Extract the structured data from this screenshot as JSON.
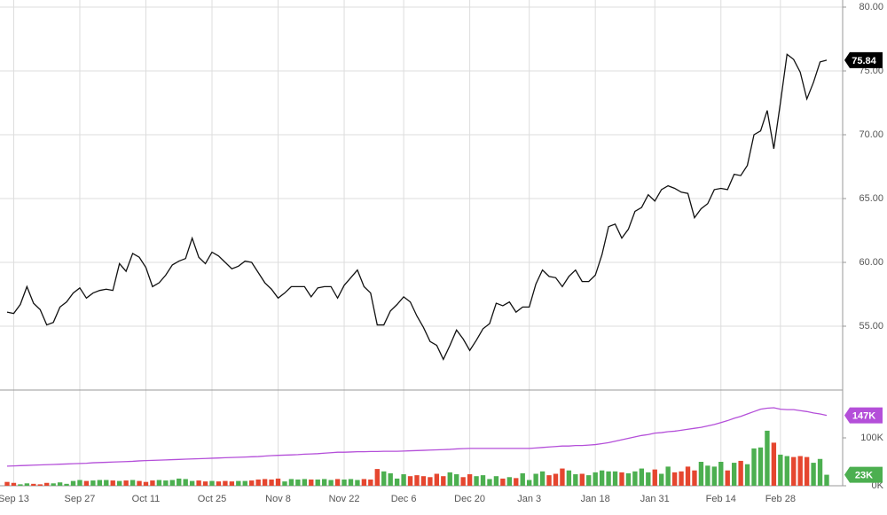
{
  "chart_data": [
    {
      "type": "line",
      "categories": [
        null,
        "Sep 13",
        null,
        null,
        null,
        null,
        null,
        null,
        null,
        null,
        null,
        "Sep 27",
        null,
        null,
        null,
        null,
        null,
        null,
        null,
        null,
        null,
        "Oct 11",
        null,
        null,
        null,
        null,
        null,
        null,
        null,
        null,
        null,
        "Oct 25",
        null,
        null,
        null,
        null,
        null,
        null,
        null,
        null,
        null,
        "Nov 8",
        null,
        null,
        null,
        null,
        null,
        null,
        null,
        null,
        null,
        "Nov 22",
        null,
        null,
        null,
        null,
        null,
        null,
        null,
        null,
        "Dec 6",
        null,
        null,
        null,
        null,
        null,
        null,
        null,
        null,
        null,
        "Dec 20",
        null,
        null,
        null,
        null,
        null,
        null,
        null,
        null,
        "Jan 3",
        null,
        null,
        null,
        null,
        null,
        null,
        null,
        null,
        null,
        "Jan 18",
        null,
        null,
        null,
        null,
        null,
        null,
        null,
        null,
        "Jan 31",
        null,
        null,
        null,
        null,
        null,
        null,
        null,
        null,
        null,
        "Feb 14",
        null,
        null,
        null,
        null,
        null,
        null,
        null,
        null,
        "Feb 28",
        null,
        null,
        null,
        null,
        null,
        null,
        null
      ],
      "series": [
        {
          "color": "#111111",
          "values": [
            56.1,
            56.0,
            56.7,
            58.1,
            56.8,
            56.3,
            55.1,
            55.3,
            56.5,
            56.9,
            57.6,
            58.0,
            57.2,
            57.6,
            57.8,
            57.9,
            57.8,
            59.9,
            59.3,
            60.7,
            60.4,
            59.6,
            58.1,
            58.4,
            59.0,
            59.8,
            60.1,
            60.3,
            61.9,
            60.4,
            59.9,
            60.8,
            60.5,
            60.0,
            59.5,
            59.7,
            60.1,
            60.0,
            59.2,
            58.4,
            57.9,
            57.2,
            57.6,
            58.1,
            58.1,
            58.1,
            57.3,
            58.0,
            58.1,
            58.1,
            57.2,
            58.2,
            58.8,
            59.4,
            58.1,
            57.6,
            55.1,
            55.1,
            56.2,
            56.7,
            57.3,
            56.9,
            55.8,
            54.9,
            53.8,
            53.5,
            52.4,
            53.5,
            54.7,
            54.0,
            53.1,
            53.9,
            54.8,
            55.2,
            56.8,
            56.6,
            56.9,
            56.1,
            56.5,
            56.5,
            58.3,
            59.4,
            58.9,
            58.8,
            58.1,
            58.9,
            59.4,
            58.5,
            58.5,
            59.0,
            60.6,
            62.8,
            63.0,
            61.9,
            62.6,
            64.0,
            64.3,
            65.3,
            64.8,
            65.7,
            66.0,
            65.8,
            65.5,
            65.4,
            63.5,
            64.2,
            64.6,
            65.7,
            65.8,
            65.7,
            66.9,
            66.8,
            67.6,
            70.0,
            70.3,
            71.9,
            68.9,
            72.5,
            76.3,
            75.9,
            74.9,
            72.8,
            74.1,
            75.7,
            75.84
          ],
          "tag_color": "#000000"
        }
      ],
      "ylim": [
        50,
        80
      ],
      "yticks": [
        {
          "value": 55,
          "label": "55.00"
        },
        {
          "value": 60,
          "label": "60.00"
        },
        {
          "value": 65,
          "label": "65.00"
        },
        {
          "value": 70,
          "label": "70.00"
        },
        {
          "value": 75,
          "label": "75.00"
        },
        {
          "value": 80,
          "label": "80.00"
        }
      ],
      "grid": true
    },
    {
      "type": "bar",
      "series": [
        {
          "type": "bar",
          "up_color": "#4caf50",
          "down_color": "#e5462f",
          "last_label": "23K",
          "values": [
            8000,
            6000,
            3000,
            5000,
            4000,
            3000,
            6000,
            5000,
            7000,
            4000,
            10000,
            12000,
            10000,
            11000,
            12000,
            12000,
            11000,
            10000,
            11000,
            12000,
            10000,
            8000,
            11000,
            12000,
            11000,
            12000,
            15000,
            14000,
            10000,
            11000,
            9000,
            10000,
            9000,
            10000,
            9000,
            10000,
            10000,
            11000,
            13000,
            14000,
            13000,
            15000,
            9000,
            14000,
            13000,
            14000,
            13000,
            13000,
            14000,
            12000,
            14000,
            13000,
            14000,
            12000,
            14000,
            13000,
            35000,
            30000,
            26000,
            15000,
            24000,
            20000,
            22000,
            20000,
            18000,
            25000,
            20000,
            28000,
            24000,
            18000,
            24000,
            20000,
            22000,
            14000,
            20000,
            15000,
            18000,
            16000,
            26000,
            12000,
            25000,
            30000,
            22000,
            25000,
            36000,
            32000,
            24000,
            25000,
            22000,
            28000,
            32000,
            30000,
            30000,
            28000,
            26000,
            30000,
            36000,
            28000,
            34000,
            25000,
            40000,
            28000,
            30000,
            40000,
            32000,
            50000,
            42000,
            40000,
            50000,
            32000,
            48000,
            52000,
            45000,
            78000,
            80000,
            115000,
            90000,
            65000,
            62000,
            60000,
            62000,
            60000,
            48000,
            56000,
            23000
          ]
        },
        {
          "type": "line",
          "color": "#b44fd9",
          "last_label": "147K",
          "values": [
            41000,
            41500,
            42000,
            42500,
            43000,
            43500,
            44000,
            44500,
            45000,
            45500,
            46000,
            46500,
            47000,
            48000,
            48500,
            49000,
            49500,
            50000,
            50500,
            51000,
            52000,
            52500,
            53000,
            53500,
            54000,
            54500,
            55000,
            55500,
            56000,
            56500,
            57000,
            57500,
            58000,
            58500,
            59000,
            59500,
            60000,
            60500,
            61000,
            62000,
            63000,
            63500,
            64000,
            64500,
            65000,
            66000,
            66500,
            67000,
            68000,
            69000,
            70000,
            70000,
            70500,
            71000,
            71000,
            71500,
            71500,
            72000,
            72000,
            72000,
            72500,
            73000,
            73500,
            74000,
            74500,
            75000,
            75500,
            76000,
            77000,
            77500,
            78000,
            78000,
            78000,
            78000,
            78000,
            78000,
            78000,
            78000,
            78000,
            78000,
            79000,
            80000,
            81000,
            82000,
            83000,
            83000,
            84000,
            84000,
            85000,
            86000,
            88000,
            90000,
            93000,
            96000,
            99000,
            102000,
            105000,
            107000,
            110000,
            111000,
            113000,
            114000,
            116000,
            118000,
            120000,
            122000,
            125000,
            128000,
            132000,
            136000,
            141000,
            145000,
            150000,
            155000,
            160000,
            162000,
            163000,
            160000,
            159000,
            159000,
            157000,
            155000,
            152000,
            150000,
            147000
          ]
        }
      ],
      "ylim": [
        0,
        200000
      ],
      "yticks": [
        {
          "value": 0,
          "label": "0K"
        },
        {
          "value": 100000,
          "label": "100K"
        }
      ]
    }
  ]
}
